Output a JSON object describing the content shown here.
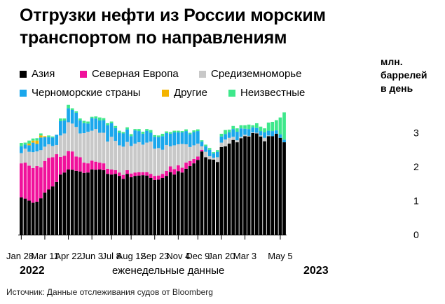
{
  "title": "Отгрузки нефти из России морским транспортом по направлениям",
  "unit_label": [
    "млн.",
    "баррелей",
    "в день"
  ],
  "years": [
    "2022",
    "2023"
  ],
  "xaxis_note": "еженедельные данные",
  "source": "Источник: Данные отслеживания судов от Bloomberg",
  "colors": {
    "Азия": "#000000",
    "Северная Европа": "#f0119b",
    "Средиземноморье": "#c8c8c8",
    "Черноморские страны": "#1aa7ec",
    "Другие": "#f4b400",
    "Неизвестные": "#3ee88b"
  },
  "chart_data": {
    "type": "bar",
    "stacked": true,
    "ylim": [
      0,
      3.5
    ],
    "yticks": [
      "0",
      "1",
      "2",
      "3"
    ],
    "x_tick_labels": [
      "Jan 28",
      "Mar 11",
      "Apr 22",
      "Jun 3",
      "Jul 8",
      "Aug 12",
      "Sep 23",
      "Nov 4",
      "Dec 9",
      "Jan 20",
      "Mar 3",
      "May 5"
    ],
    "x_tick_index": [
      0,
      6,
      12,
      18,
      23,
      28,
      34,
      40,
      45,
      51,
      57,
      66
    ],
    "legend": [
      "Азия",
      "Северная Европа",
      "Средиземноморье",
      "Черноморские страны",
      "Другие",
      "Неизвестные"
    ],
    "series": [
      {
        "name": "Азия",
        "values": [
          1.1,
          1.06,
          1.0,
          0.94,
          0.97,
          1.07,
          1.24,
          1.33,
          1.42,
          1.55,
          1.77,
          1.83,
          1.92,
          1.91,
          1.88,
          1.86,
          1.82,
          1.83,
          1.92,
          1.91,
          1.92,
          1.9,
          1.79,
          1.77,
          1.79,
          1.73,
          1.64,
          1.79,
          1.69,
          1.73,
          1.74,
          1.75,
          1.74,
          1.67,
          1.61,
          1.62,
          1.67,
          1.73,
          1.84,
          1.77,
          1.87,
          1.83,
          1.94,
          2.02,
          2.1,
          2.2,
          2.45,
          2.28,
          2.22,
          2.21,
          2.14,
          2.58,
          2.6,
          2.68,
          2.79,
          2.72,
          2.84,
          2.9,
          2.89,
          2.99,
          2.98,
          2.89,
          2.75,
          2.9,
          2.9,
          2.97,
          2.85,
          2.72
        ]
      },
      {
        "name": "Северная Европа",
        "values": [
          1.0,
          1.06,
          1.03,
          1.02,
          1.05,
          0.91,
          0.93,
          0.93,
          0.86,
          0.82,
          0.52,
          0.49,
          0.54,
          0.54,
          0.42,
          0.42,
          0.3,
          0.27,
          0.26,
          0.24,
          0.2,
          0.2,
          0.15,
          0.15,
          0.11,
          0.1,
          0.12,
          0.11,
          0.11,
          0.1,
          0.1,
          0.09,
          0.1,
          0.12,
          0.12,
          0.12,
          0.12,
          0.15,
          0.17,
          0.16,
          0.17,
          0.14,
          0.18,
          0.15,
          0.13,
          0.1,
          0.05,
          0.0,
          0.0,
          0.0,
          0.0,
          0.0,
          0.0,
          0.0,
          0.0,
          0.0,
          0.0,
          0.0,
          0.0,
          0.0,
          0.0,
          0.0,
          0.0,
          0.0,
          0.0,
          0.0,
          0.0,
          0.0
        ]
      },
      {
        "name": "Средиземноморье",
        "values": [
          0.3,
          0.41,
          0.41,
          0.47,
          0.43,
          0.51,
          0.42,
          0.4,
          0.33,
          0.27,
          0.63,
          0.66,
          0.85,
          0.82,
          0.87,
          0.7,
          0.87,
          0.93,
          0.88,
          0.96,
          0.88,
          0.9,
          0.8,
          0.96,
          0.86,
          0.8,
          0.83,
          0.83,
          0.81,
          0.85,
          0.88,
          0.81,
          0.87,
          0.95,
          0.8,
          0.81,
          0.71,
          0.76,
          0.59,
          0.7,
          0.62,
          0.7,
          0.54,
          0.41,
          0.4,
          0.38,
          0.1,
          0.16,
          0.09,
          0.05,
          0.14,
          0.13,
          0.2,
          0.17,
          0.09,
          0.06,
          0.04,
          0.04,
          0.02,
          0.02,
          0.02,
          0.03,
          0.1,
          0.02,
          0.0,
          0.0,
          0.0,
          0.0
        ]
      },
      {
        "name": "Черноморские страны",
        "values": [
          0.2,
          0.12,
          0.19,
          0.28,
          0.22,
          0.37,
          0.28,
          0.21,
          0.25,
          0.3,
          0.42,
          0.38,
          0.41,
          0.4,
          0.42,
          0.38,
          0.29,
          0.24,
          0.37,
          0.31,
          0.36,
          0.37,
          0.48,
          0.4,
          0.38,
          0.37,
          0.39,
          0.37,
          0.29,
          0.39,
          0.33,
          0.32,
          0.35,
          0.26,
          0.35,
          0.32,
          0.4,
          0.35,
          0.37,
          0.38,
          0.35,
          0.34,
          0.39,
          0.38,
          0.39,
          0.37,
          0.14,
          0.16,
          0.19,
          0.13,
          0.16,
          0.18,
          0.16,
          0.16,
          0.23,
          0.25,
          0.25,
          0.18,
          0.2,
          0.15,
          0.14,
          0.13,
          0.16,
          0.14,
          0.15,
          0.1,
          0.1,
          0.08
        ]
      },
      {
        "name": "Другие",
        "values": [
          0.0,
          0.0,
          0.05,
          0.06,
          0.1,
          0.06,
          0.03,
          0.0,
          0.0,
          0.0,
          0.0,
          0.0,
          0.0,
          0.0,
          0.0,
          0.0,
          0.0,
          0.0,
          0.0,
          0.0,
          0.0,
          0.0,
          0.0,
          0.0,
          0.0,
          0.0,
          0.0,
          0.0,
          0.0,
          0.0,
          0.0,
          0.0,
          0.0,
          0.0,
          0.0,
          0.0,
          0.0,
          0.0,
          0.0,
          0.0,
          0.0,
          0.0,
          0.0,
          0.0,
          0.0,
          0.0,
          0.0,
          0.0,
          0.0,
          0.0,
          0.0,
          0.0,
          0.0,
          0.0,
          0.0,
          0.0,
          0.0,
          0.0,
          0.0,
          0.0,
          0.0,
          0.0,
          0.0,
          0.0,
          0.0,
          0.0,
          0.0,
          0.0
        ]
      },
      {
        "name": "Неизвестные",
        "values": [
          0.1,
          0.06,
          0.09,
          0.06,
          0.07,
          0.06,
          0.0,
          0.05,
          0.03,
          0.0,
          0.08,
          0.06,
          0.1,
          0.05,
          0.04,
          0.06,
          0.07,
          0.06,
          0.04,
          0.06,
          0.09,
          0.06,
          0.06,
          0.05,
          0.06,
          0.06,
          0.04,
          0.06,
          0.06,
          0.04,
          0.06,
          0.06,
          0.05,
          0.08,
          0.05,
          0.05,
          0.07,
          0.05,
          0.05,
          0.05,
          0.05,
          0.04,
          0.05,
          0.04,
          0.05,
          0.05,
          0.04,
          0.05,
          0.05,
          0.04,
          0.05,
          0.08,
          0.12,
          0.08,
          0.09,
          0.1,
          0.09,
          0.1,
          0.13,
          0.06,
          0.14,
          0.13,
          0.12,
          0.24,
          0.27,
          0.3,
          0.5,
          0.8
        ]
      }
    ]
  }
}
